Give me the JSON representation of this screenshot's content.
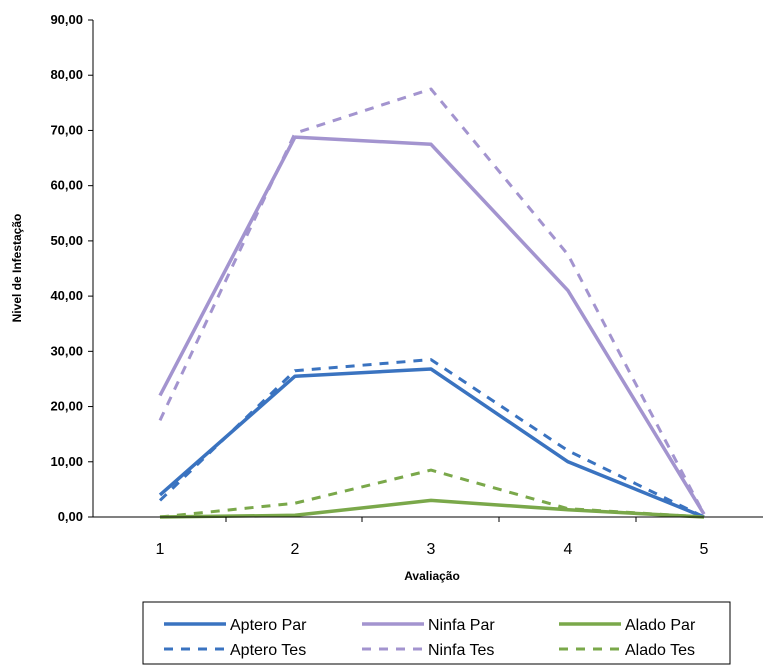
{
  "chart_data": {
    "type": "line",
    "xlabel": "Avaliação",
    "ylabel": "Nivel de Infestação",
    "categories": [
      "1",
      "2",
      "3",
      "4",
      "5"
    ],
    "y_ticks": [
      "0,00",
      "10,00",
      "20,00",
      "30,00",
      "40,00",
      "50,00",
      "60,00",
      "70,00",
      "80,00",
      "90,00"
    ],
    "ylim": [
      0,
      90
    ],
    "grid": false,
    "legend_position": "bottom",
    "series": [
      {
        "name": "Aptero Par",
        "color": "#3a73c0",
        "dash": "solid",
        "values": [
          4.0,
          25.5,
          26.8,
          10.0,
          0.0
        ]
      },
      {
        "name": "Ninfa Par",
        "color": "#a394cf",
        "dash": "solid",
        "values": [
          22.0,
          68.8,
          67.5,
          41.0,
          0.5
        ]
      },
      {
        "name": "Alado Par",
        "color": "#7aa84a",
        "dash": "solid",
        "values": [
          0.0,
          0.3,
          3.0,
          1.3,
          0.0
        ]
      },
      {
        "name": "Aptero Tes",
        "color": "#3a73c0",
        "dash": "dashed",
        "values": [
          3.0,
          26.5,
          28.5,
          12.0,
          0.0
        ]
      },
      {
        "name": "Ninfa Tes",
        "color": "#a394cf",
        "dash": "dashed",
        "values": [
          17.5,
          69.5,
          77.5,
          47.5,
          0.5
        ]
      },
      {
        "name": "Alado Tes",
        "color": "#7aa84a",
        "dash": "dashed",
        "values": [
          0.0,
          2.5,
          8.5,
          1.5,
          0.0
        ]
      }
    ]
  }
}
